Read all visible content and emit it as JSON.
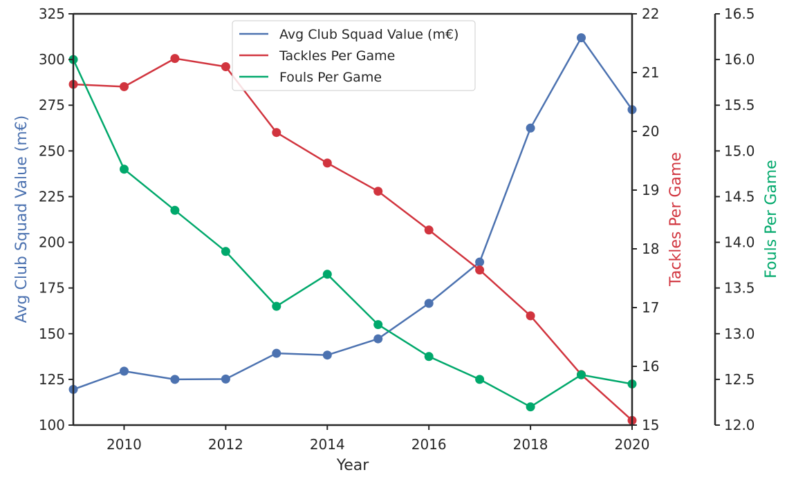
{
  "chart_data": {
    "type": "line",
    "xlabel": "Year",
    "x": [
      2009,
      2010,
      2011,
      2012,
      2013,
      2014,
      2015,
      2016,
      2017,
      2018,
      2019,
      2020
    ],
    "xlim": [
      2009,
      2020
    ],
    "xticks": [
      "2010",
      "2012",
      "2014",
      "2016",
      "2018",
      "2020"
    ],
    "xtick_values": [
      2010,
      2012,
      2014,
      2016,
      2018,
      2020
    ],
    "grid": false,
    "legend_position": "top-center",
    "series": [
      {
        "name": "Avg Club Squad Value (m€)",
        "axis": "left",
        "color": "#4c72b0",
        "values": [
          119.5,
          129.5,
          125,
          125.2,
          139.3,
          138.3,
          147.2,
          166.6,
          189.2,
          262.5,
          311.9,
          272.6
        ]
      },
      {
        "name": "Tackles Per Game",
        "axis": "right",
        "color": "#d1343e",
        "values": [
          20.8,
          20.76,
          21.24,
          21.1,
          19.98,
          19.46,
          18.98,
          18.32,
          17.64,
          16.86,
          15.86,
          15.08
        ]
      },
      {
        "name": "Fouls Per Game",
        "axis": "right2",
        "color": "#00a86b",
        "values": [
          16.0,
          14.8,
          14.35,
          13.9,
          13.3,
          13.65,
          13.1,
          12.75,
          12.5,
          12.2,
          12.55,
          12.45
        ]
      }
    ],
    "axes": {
      "left": {
        "label": "Avg Club Squad Value (m€)",
        "label_color": "#4c72b0",
        "ylim": [
          100,
          325
        ],
        "ticks": [
          "100",
          "125",
          "150",
          "175",
          "200",
          "225",
          "250",
          "275",
          "300",
          "325"
        ],
        "tick_values": [
          100,
          125,
          150,
          175,
          200,
          225,
          250,
          275,
          300,
          325
        ]
      },
      "right": {
        "label": "Tackles Per Game",
        "label_color": "#d1343e",
        "ylim": [
          15,
          22
        ],
        "ticks": [
          "15",
          "16",
          "17",
          "18",
          "19",
          "20",
          "21",
          "22"
        ],
        "tick_values": [
          15,
          16,
          17,
          18,
          19,
          20,
          21,
          22
        ]
      },
      "right2": {
        "label": "Fouls Per Game",
        "label_color": "#00a86b",
        "ylim": [
          12.0,
          16.5
        ],
        "ticks": [
          "12.0",
          "12.5",
          "13.0",
          "13.5",
          "14.0",
          "14.5",
          "15.0",
          "15.5",
          "16.0",
          "16.5"
        ],
        "tick_values": [
          12.0,
          12.5,
          13.0,
          13.5,
          14.0,
          14.5,
          15.0,
          15.5,
          16.0,
          16.5
        ]
      }
    }
  }
}
